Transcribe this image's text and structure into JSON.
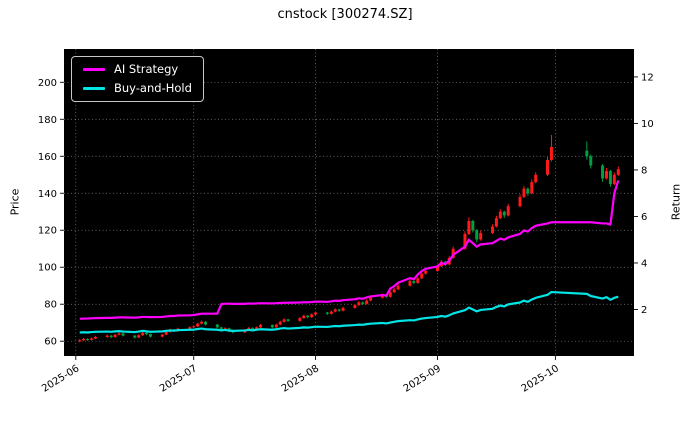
{
  "chart_data": {
    "type": "candlestick",
    "title": "cnstock [300274.SZ]",
    "ylabel_left": "Price",
    "ylabel_right": "Return",
    "price_ticks": [
      60,
      80,
      100,
      120,
      140,
      160,
      180,
      200
    ],
    "return_ticks": [
      2,
      4,
      6,
      8,
      10,
      12
    ],
    "price_ylim": [
      52,
      218
    ],
    "return_ylim": [
      0,
      13.2
    ],
    "date_range": [
      "2025-05-29",
      "2025-10-21"
    ],
    "x_ticks": [
      "2025-06-01",
      "2025-07-01",
      "2025-08-01",
      "2025-09-01",
      "2025-10-01"
    ],
    "x_tick_labels": [
      "2025-06",
      "2025-07",
      "2025-08",
      "2025-09",
      "2025-10"
    ],
    "background": "#000000",
    "figure_background": "#ffffff",
    "grid_color": "#7f7f7f",
    "text_color": "#000000",
    "up_color": "#ff1a1a",
    "down_color": "#00a040",
    "legend_position": "upper-left",
    "candles": [
      [
        "2025-06-02",
        60.0,
        61.2,
        59.4,
        60.5
      ],
      [
        "2025-06-03",
        60.5,
        61.8,
        60.1,
        61.2
      ],
      [
        "2025-06-04",
        61.2,
        61.6,
        60.2,
        60.8
      ],
      [
        "2025-06-05",
        60.8,
        62.0,
        60.4,
        61.5
      ],
      [
        "2025-06-06",
        61.5,
        62.8,
        61.1,
        62.3
      ],
      [
        "2025-06-09",
        62.3,
        63.6,
        61.9,
        63.0
      ],
      [
        "2025-06-10",
        63.0,
        63.4,
        61.7,
        62.2
      ],
      [
        "2025-06-11",
        62.2,
        64.0,
        61.9,
        63.5
      ],
      [
        "2025-06-12",
        63.5,
        64.8,
        63.1,
        64.2
      ],
      [
        "2025-06-13",
        64.2,
        64.6,
        62.6,
        63.0
      ],
      [
        "2025-06-16",
        63.0,
        63.3,
        61.5,
        62.0
      ],
      [
        "2025-06-17",
        62.0,
        63.7,
        61.7,
        63.2
      ],
      [
        "2025-06-18",
        63.2,
        65.0,
        62.9,
        64.5
      ],
      [
        "2025-06-19",
        64.5,
        64.9,
        63.3,
        63.8
      ],
      [
        "2025-06-20",
        63.8,
        64.1,
        62.0,
        62.5
      ],
      [
        "2025-06-23",
        62.5,
        64.0,
        62.1,
        63.5
      ],
      [
        "2025-06-24",
        63.5,
        65.5,
        63.2,
        65.0
      ],
      [
        "2025-06-25",
        65.0,
        66.8,
        64.6,
        66.2
      ],
      [
        "2025-06-26",
        66.2,
        66.6,
        65.0,
        65.5
      ],
      [
        "2025-06-27",
        65.5,
        67.3,
        65.1,
        66.8
      ],
      [
        "2025-06-30",
        66.8,
        68.0,
        66.3,
        67.5
      ],
      [
        "2025-07-01",
        67.5,
        68.6,
        67.1,
        68.0
      ],
      [
        "2025-07-02",
        68.0,
        70.0,
        67.6,
        69.5
      ],
      [
        "2025-07-03",
        69.5,
        71.2,
        69.1,
        70.5
      ],
      [
        "2025-07-04",
        70.5,
        70.9,
        68.5,
        69.0
      ],
      [
        "2025-07-07",
        69.0,
        69.3,
        67.0,
        67.5
      ],
      [
        "2025-07-08",
        67.5,
        67.8,
        65.5,
        66.0
      ],
      [
        "2025-07-09",
        66.0,
        67.6,
        65.6,
        67.0
      ],
      [
        "2025-07-10",
        67.0,
        67.3,
        65.0,
        65.5
      ],
      [
        "2025-07-11",
        65.5,
        65.9,
        64.2,
        64.8
      ],
      [
        "2025-07-14",
        64.8,
        66.5,
        64.4,
        66.0
      ],
      [
        "2025-07-15",
        66.0,
        67.7,
        65.7,
        67.2
      ],
      [
        "2025-07-16",
        67.2,
        67.5,
        65.5,
        66.0
      ],
      [
        "2025-07-17",
        66.0,
        68.0,
        65.7,
        67.5
      ],
      [
        "2025-07-18",
        67.5,
        69.3,
        67.1,
        68.8
      ],
      [
        "2025-07-21",
        68.8,
        69.1,
        67.0,
        67.5
      ],
      [
        "2025-07-22",
        67.5,
        69.5,
        67.2,
        69.0
      ],
      [
        "2025-07-23",
        69.0,
        71.0,
        68.6,
        70.5
      ],
      [
        "2025-07-24",
        70.5,
        72.3,
        70.1,
        71.8
      ],
      [
        "2025-07-25",
        71.8,
        72.1,
        70.4,
        71.0
      ],
      [
        "2025-07-28",
        71.0,
        73.0,
        70.6,
        72.5
      ],
      [
        "2025-07-29",
        72.5,
        74.3,
        72.1,
        73.8
      ],
      [
        "2025-07-30",
        73.8,
        74.1,
        72.4,
        73.0
      ],
      [
        "2025-07-31",
        73.0,
        75.0,
        72.6,
        74.5
      ],
      [
        "2025-08-01",
        74.5,
        76.1,
        74.1,
        75.5
      ],
      [
        "2025-08-04",
        75.5,
        75.8,
        74.2,
        74.8
      ],
      [
        "2025-08-05",
        74.8,
        76.6,
        74.4,
        76.0
      ],
      [
        "2025-08-06",
        76.0,
        77.8,
        75.6,
        77.2
      ],
      [
        "2025-08-07",
        77.2,
        77.5,
        75.9,
        76.5
      ],
      [
        "2025-08-08",
        76.5,
        78.6,
        76.1,
        78.0
      ],
      [
        "2025-08-11",
        78.0,
        80.1,
        77.6,
        79.5
      ],
      [
        "2025-08-12",
        79.5,
        81.7,
        79.1,
        81.0
      ],
      [
        "2025-08-13",
        81.0,
        81.4,
        79.6,
        80.2
      ],
      [
        "2025-08-14",
        80.2,
        82.7,
        79.8,
        82.0
      ],
      [
        "2025-08-15",
        82.0,
        84.2,
        81.6,
        83.5
      ],
      [
        "2025-08-18",
        83.5,
        85.8,
        83.1,
        85.0
      ],
      [
        "2025-08-19",
        85.0,
        85.4,
        83.4,
        84.0
      ],
      [
        "2025-08-20",
        84.0,
        87.2,
        83.6,
        86.5
      ],
      [
        "2025-08-21",
        86.5,
        88.8,
        86.1,
        88.0
      ],
      [
        "2025-08-22",
        88.0,
        90.8,
        87.6,
        90.0
      ],
      [
        "2025-08-25",
        90.0,
        93.3,
        89.6,
        92.5
      ],
      [
        "2025-08-26",
        92.5,
        92.9,
        90.8,
        91.5
      ],
      [
        "2025-08-27",
        91.5,
        94.8,
        91.1,
        94.0
      ],
      [
        "2025-08-28",
        94.0,
        97.3,
        93.6,
        96.5
      ],
      [
        "2025-08-29",
        96.5,
        98.9,
        96.1,
        98.0
      ],
      [
        "2025-09-01",
        98.0,
        101.4,
        97.6,
        100.5
      ],
      [
        "2025-09-02",
        100.5,
        103.9,
        100.1,
        103.0
      ],
      [
        "2025-09-03",
        103.0,
        103.4,
        100.7,
        101.5
      ],
      [
        "2025-09-04",
        101.5,
        106.0,
        101.1,
        105.0
      ],
      [
        "2025-09-05",
        105.0,
        111.2,
        104.6,
        110.0
      ],
      [
        "2025-09-08",
        110.0,
        119.5,
        109.5,
        118.0
      ],
      [
        "2025-09-09",
        118.0,
        127.0,
        117.4,
        125.0
      ],
      [
        "2025-09-10",
        125.0,
        125.6,
        118.8,
        120.0
      ],
      [
        "2025-09-11",
        120.0,
        120.6,
        113.5,
        115.0
      ],
      [
        "2025-09-12",
        115.0,
        119.8,
        114.4,
        118.5
      ],
      [
        "2025-09-15",
        118.5,
        123.2,
        118.0,
        122.0
      ],
      [
        "2025-09-16",
        122.0,
        127.8,
        121.5,
        126.5
      ],
      [
        "2025-09-17",
        126.5,
        131.4,
        126.0,
        130.0
      ],
      [
        "2025-09-18",
        130.0,
        130.6,
        126.6,
        128.0
      ],
      [
        "2025-09-19",
        128.0,
        134.3,
        127.5,
        133.0
      ],
      [
        "2025-09-22",
        133.0,
        139.4,
        132.4,
        138.0
      ],
      [
        "2025-09-23",
        138.0,
        143.9,
        137.4,
        142.5
      ],
      [
        "2025-09-24",
        142.5,
        143.1,
        138.6,
        140.0
      ],
      [
        "2025-09-25",
        140.0,
        147.5,
        139.4,
        146.0
      ],
      [
        "2025-09-26",
        146.0,
        151.4,
        145.4,
        150.0
      ],
      [
        "2025-09-29",
        150.0,
        159.6,
        149.3,
        158.0
      ],
      [
        "2025-09-30",
        158.0,
        171.5,
        157.2,
        165.0
      ],
      [
        "2025-10-09",
        163.0,
        168.0,
        158.2,
        160.0
      ],
      [
        "2025-10-10",
        160.0,
        161.0,
        153.4,
        155.0
      ],
      [
        "2025-10-13",
        155.0,
        155.8,
        146.2,
        148.0
      ],
      [
        "2025-10-14",
        148.0,
        153.6,
        147.4,
        152.0
      ],
      [
        "2025-10-15",
        152.0,
        152.6,
        143.5,
        145.0
      ],
      [
        "2025-10-16",
        145.0,
        151.2,
        144.4,
        150.0
      ],
      [
        "2025-10-17",
        150.0,
        154.5,
        149.4,
        153.0
      ]
    ],
    "series": [
      {
        "name": "AI Strategy",
        "color": "#ff00ff",
        "axis": "return",
        "values": [
          1.6,
          1.61,
          1.61,
          1.62,
          1.63,
          1.64,
          1.64,
          1.65,
          1.66,
          1.66,
          1.65,
          1.66,
          1.68,
          1.68,
          1.67,
          1.68,
          1.7,
          1.72,
          1.72,
          1.74,
          1.75,
          1.76,
          1.79,
          1.82,
          1.82,
          1.82,
          2.23,
          2.25,
          2.25,
          2.24,
          2.24,
          2.26,
          2.25,
          2.26,
          2.27,
          2.26,
          2.27,
          2.28,
          2.29,
          2.29,
          2.3,
          2.31,
          2.31,
          2.32,
          2.34,
          2.33,
          2.35,
          2.38,
          2.37,
          2.4,
          2.44,
          2.48,
          2.46,
          2.52,
          2.56,
          2.62,
          2.6,
          2.9,
          3.0,
          3.15,
          3.35,
          3.3,
          3.5,
          3.65,
          3.75,
          3.85,
          4.0,
          3.95,
          4.1,
          4.35,
          4.7,
          5.0,
          4.85,
          4.7,
          4.8,
          4.85,
          4.95,
          5.05,
          5.0,
          5.1,
          5.25,
          5.4,
          5.35,
          5.5,
          5.6,
          5.7,
          5.75,
          5.75,
          5.75,
          5.7,
          5.7,
          5.65,
          7.0,
          7.55
        ]
      },
      {
        "name": "Buy-and-Hold",
        "color": "#00e5e5",
        "axis": "return",
        "values": [
          1.01,
          1.02,
          1.01,
          1.03,
          1.04,
          1.05,
          1.04,
          1.06,
          1.07,
          1.05,
          1.03,
          1.05,
          1.08,
          1.06,
          1.04,
          1.06,
          1.08,
          1.1,
          1.09,
          1.11,
          1.13,
          1.13,
          1.16,
          1.18,
          1.15,
          1.13,
          1.1,
          1.12,
          1.09,
          1.08,
          1.1,
          1.12,
          1.1,
          1.13,
          1.15,
          1.13,
          1.15,
          1.18,
          1.2,
          1.18,
          1.21,
          1.23,
          1.22,
          1.24,
          1.26,
          1.25,
          1.27,
          1.29,
          1.28,
          1.3,
          1.33,
          1.35,
          1.34,
          1.37,
          1.39,
          1.42,
          1.4,
          1.44,
          1.47,
          1.5,
          1.54,
          1.53,
          1.57,
          1.61,
          1.63,
          1.68,
          1.72,
          1.69,
          1.75,
          1.83,
          1.97,
          2.08,
          2.0,
          1.92,
          1.98,
          2.03,
          2.11,
          2.17,
          2.13,
          2.22,
          2.3,
          2.38,
          2.33,
          2.43,
          2.5,
          2.63,
          2.75,
          2.67,
          2.58,
          2.47,
          2.53,
          2.42,
          2.5,
          2.55
        ]
      }
    ]
  }
}
